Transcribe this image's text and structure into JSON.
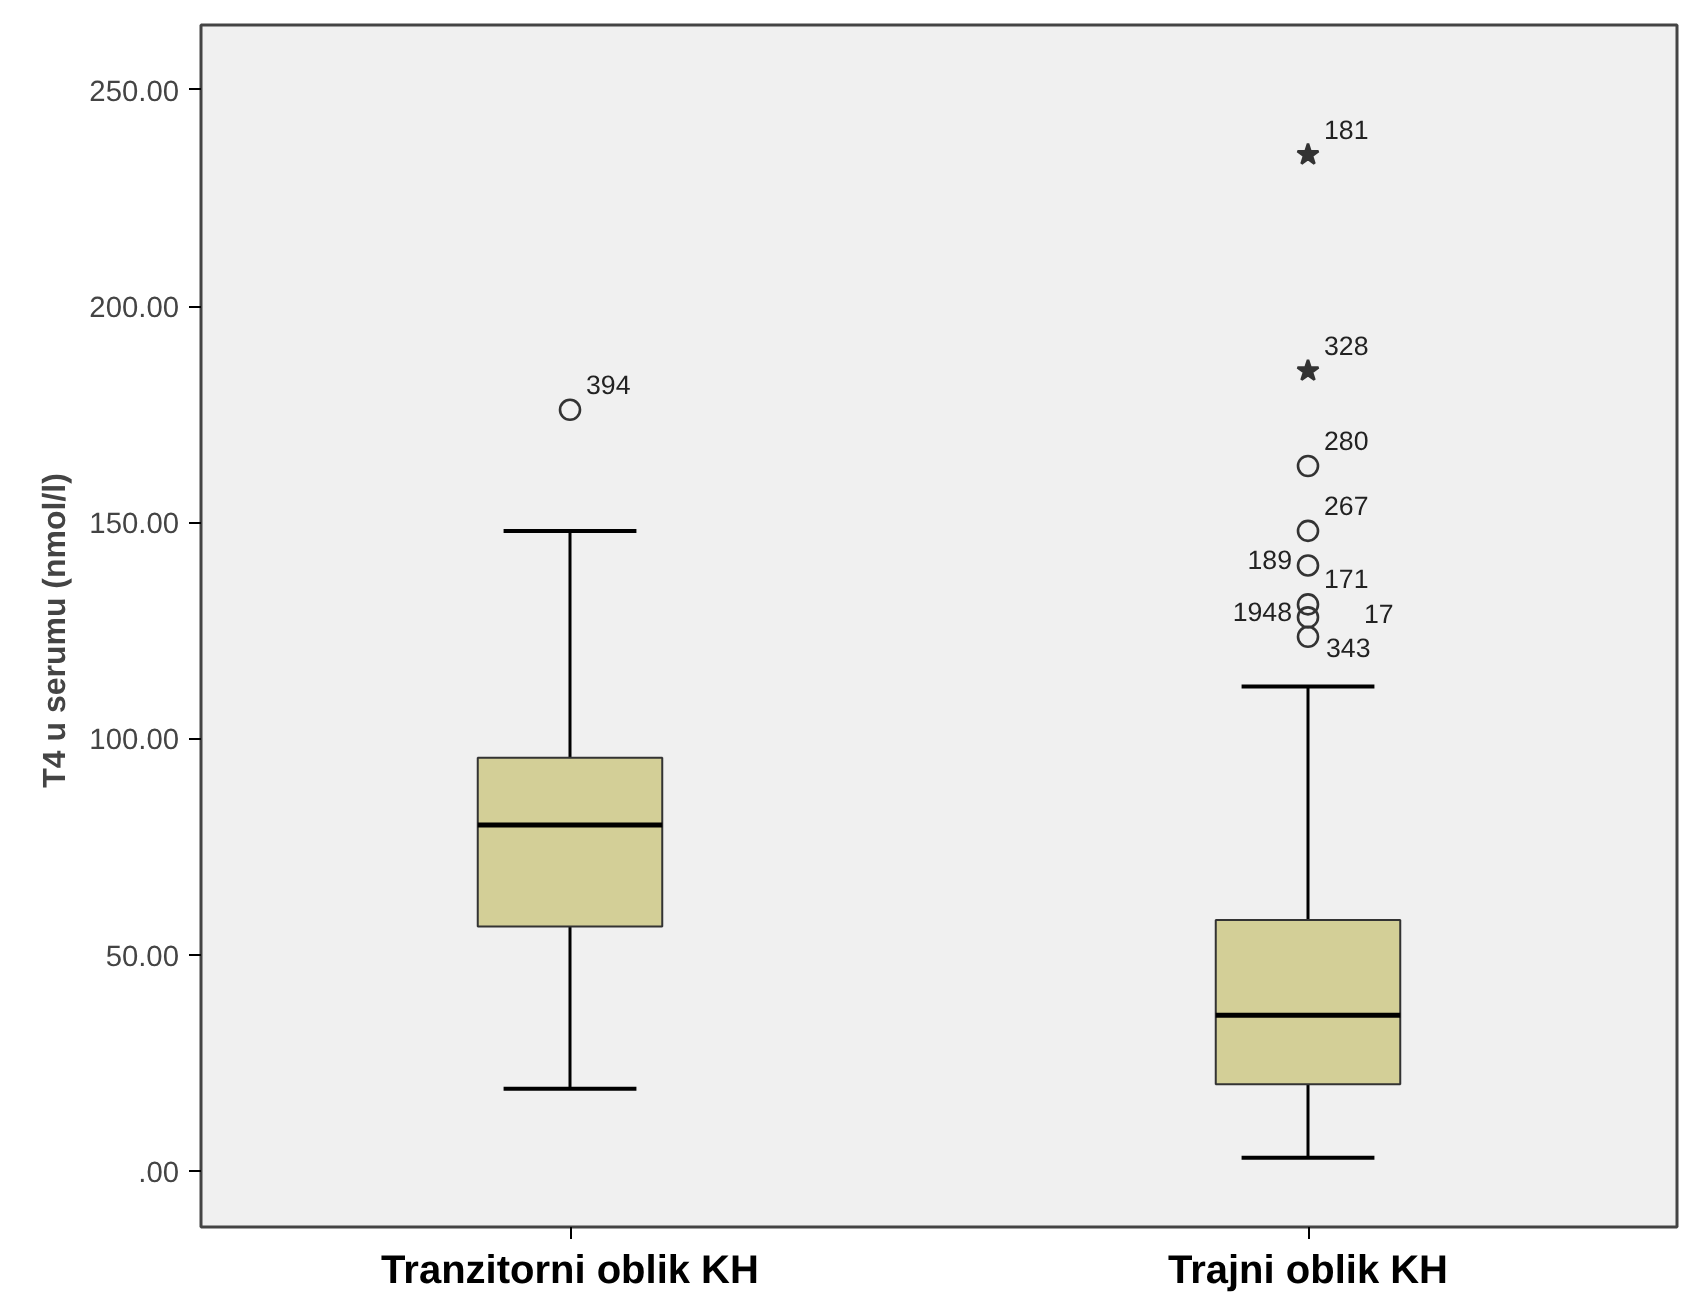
{
  "chart_data": {
    "type": "box",
    "ylabel": "T4  u serumu (nmol/l)",
    "categories": [
      "Tranzitorni oblik KH",
      "Trajni oblik KH"
    ],
    "series": [
      {
        "color": "#d3cf97",
        "boxes": [
          {
            "low": 19,
            "q1": 56.5,
            "median": 80,
            "q3": 95.5,
            "high": 148
          },
          {
            "low": 3,
            "q1": 20,
            "median": 36,
            "q3": 58,
            "high": 112
          }
        ]
      },
      {
        "type": "scatter",
        "marker": "circle",
        "color": "#333333",
        "x": [
          "Tranzitorni oblik KH",
          "Trajni oblik KH",
          "Trajni oblik KH",
          "Trajni oblik KH",
          "Trajni oblik KH",
          "Trajni oblik KH",
          "Trajni oblik KH"
        ],
        "values": [
          176,
          163,
          148,
          140,
          131,
          128,
          123.5
        ]
      },
      {
        "type": "scatter",
        "marker": "star",
        "color": "#333333",
        "x": [
          "Trajni oblik KH",
          "Trajni oblik KH"
        ],
        "values": [
          235,
          185
        ]
      }
    ],
    "ylim": [
      -13,
      265
    ],
    "yticks": [
      {
        "value": 0,
        "label": ".00"
      },
      {
        "value": 50,
        "label": "50.00"
      },
      {
        "value": 100,
        "label": "100.00"
      },
      {
        "value": 150,
        "label": "150.00"
      },
      {
        "value": 200,
        "label": "200.00"
      },
      {
        "value": 250,
        "label": "250.00"
      }
    ],
    "grid": false,
    "annotations": [
      {
        "text": "394",
        "x": "Tranzitorni oblik KH",
        "y": 176
      },
      {
        "text": "181",
        "x": "Trajni oblik KH",
        "y": 235
      },
      {
        "text": "328",
        "x": "Trajni oblik KH",
        "y": 185
      },
      {
        "text": "280",
        "x": "Trajni oblik KH",
        "y": 163
      },
      {
        "text": "267",
        "x": "Trajni oblik KH",
        "y": 148
      },
      {
        "text": "189",
        "x": "Trajni oblik KH",
        "y": 140
      },
      {
        "text": "171",
        "x": "Trajni oblik KH",
        "y": 131
      },
      {
        "text": "1948",
        "x": "Trajni oblik KH",
        "y": 128
      },
      {
        "text": "343",
        "x": "Trajni oblik KH",
        "y": 123.5
      },
      {
        "text": "17",
        "x": "Trajni oblik KH",
        "y": 123.5
      }
    ]
  }
}
